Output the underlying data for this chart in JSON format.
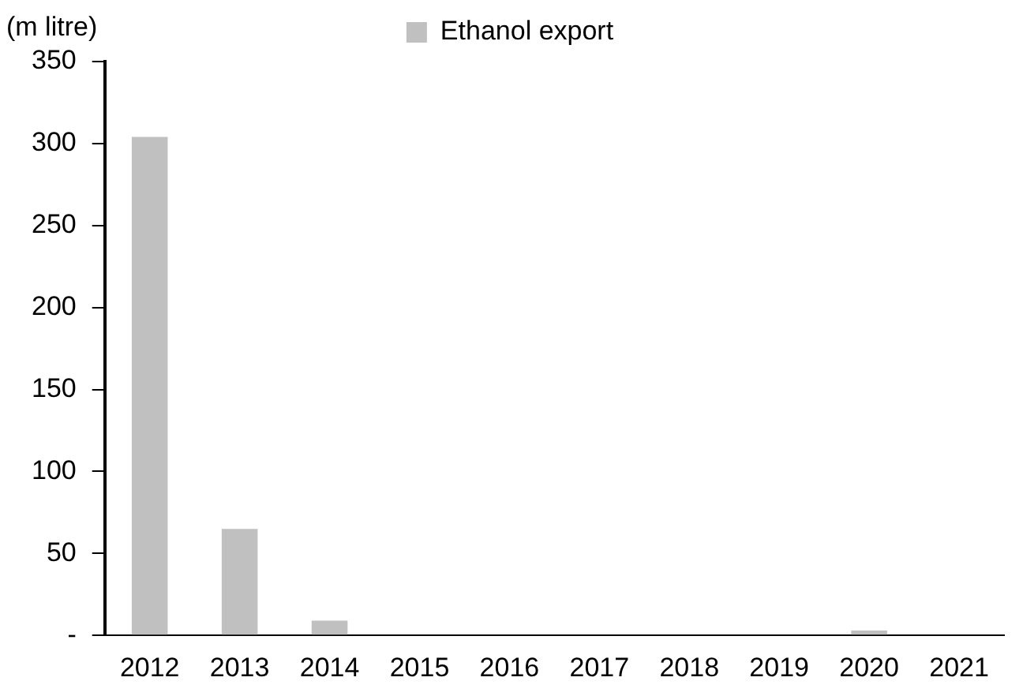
{
  "chart_data": {
    "type": "bar",
    "ylabel": "(m litre)",
    "categories": [
      "2012",
      "2013",
      "2014",
      "2015",
      "2016",
      "2017",
      "2018",
      "2019",
      "2020",
      "2021"
    ],
    "series": [
      {
        "name": "Ethanol export",
        "color": "#c0c0c0",
        "values": [
          304,
          65,
          9,
          0,
          0,
          0,
          0,
          0,
          3,
          0
        ]
      }
    ],
    "ylim": [
      0,
      350
    ],
    "yticks": [
      {
        "value": 0,
        "label": "-"
      },
      50,
      100,
      150,
      200,
      250,
      300,
      350
    ],
    "grid": false,
    "legend": "top"
  }
}
